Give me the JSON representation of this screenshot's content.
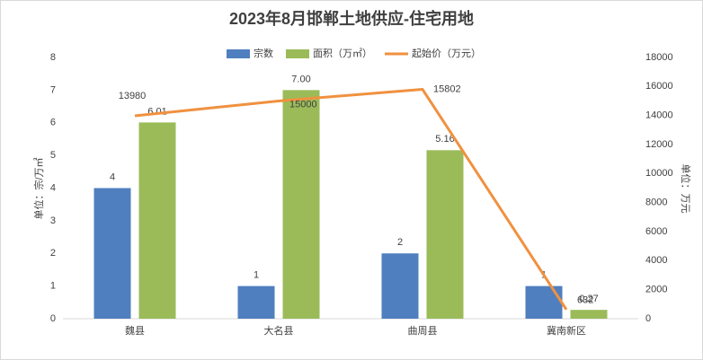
{
  "chart_data": {
    "type": "bar",
    "title": "2023年8月邯郸土地供应-住宅用地",
    "categories": [
      "魏县",
      "大名县",
      "曲周县",
      "冀南新区"
    ],
    "series": [
      {
        "name": "宗数",
        "type": "bar",
        "color": "#4f7fbf",
        "values": [
          4,
          1,
          2,
          1
        ]
      },
      {
        "name": "面积（万㎡）",
        "type": "bar",
        "color": "#9bbb59",
        "values": [
          6.01,
          7,
          5.16,
          0.27
        ],
        "value_labels": [
          "6.01",
          "7.00",
          "5.16",
          "0.27"
        ]
      },
      {
        "name": "起始价（万元）",
        "type": "line",
        "axis": "y2",
        "color": "#f0913f",
        "values": [
          13980,
          15000,
          15802,
          632
        ]
      }
    ],
    "ylabel": "单位：宗/万㎡",
    "y2label": "单位：万元",
    "ylim": [
      0,
      8
    ],
    "yticks": [
      0,
      1,
      2,
      3,
      4,
      5,
      6,
      7,
      8
    ],
    "y2lim": [
      0,
      18000
    ],
    "y2ticks": [
      0,
      2000,
      4000,
      6000,
      8000,
      10000,
      12000,
      14000,
      16000,
      18000
    ],
    "legend": "top"
  }
}
